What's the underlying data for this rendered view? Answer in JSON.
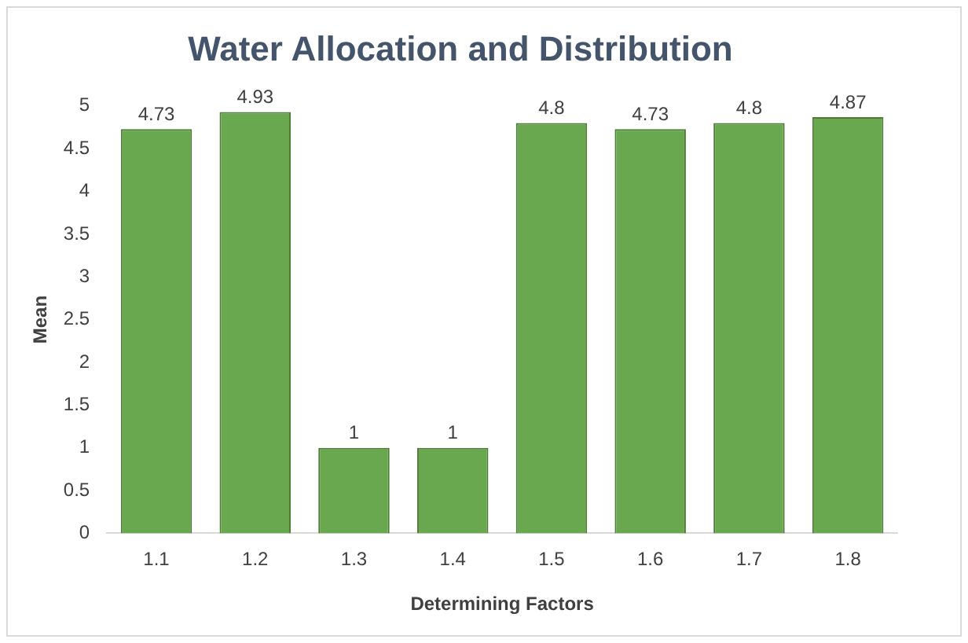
{
  "chart_data": {
    "type": "bar",
    "title": "Water Allocation and Distribution",
    "xlabel": "Determining Factors",
    "ylabel": "Mean",
    "categories": [
      "1.1",
      "1.2",
      "1.3",
      "1.4",
      "1.5",
      "1.6",
      "1.7",
      "1.8"
    ],
    "values": [
      4.73,
      4.93,
      1,
      1,
      4.8,
      4.73,
      4.8,
      4.87
    ],
    "color": "#6aa84f",
    "ylim": [
      0,
      5
    ],
    "yticks": [
      0,
      0.5,
      1,
      1.5,
      2,
      2.5,
      3,
      3.5,
      4,
      4.5,
      5
    ],
    "data_labels": true,
    "grid": false,
    "legend": false
  }
}
